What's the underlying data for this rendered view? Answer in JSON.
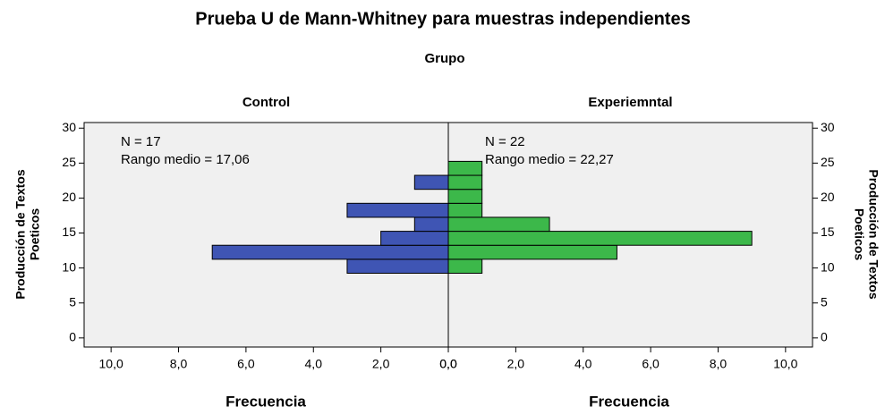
{
  "chart_data": {
    "type": "histogram",
    "title": "Prueba U de Mann-Whitney para muestras independientes",
    "subtitle": "Grupo",
    "ylabel": [
      "Producción de Textos",
      "Poeticos"
    ],
    "xlabel": "Frecuencia",
    "bins": [
      9.25,
      11.25,
      13.25,
      15.25,
      17.25,
      19.25,
      21.25,
      23.25,
      25.25
    ],
    "ylim": [
      -1.3,
      30.8
    ],
    "yticks": [
      0,
      5,
      10,
      15,
      20,
      25,
      30
    ],
    "xlim": [
      0,
      10.8
    ],
    "xticks": [
      {
        "value": 0,
        "label": "0,0"
      },
      {
        "value": 2,
        "label": "2,0"
      },
      {
        "value": 4,
        "label": "4,0"
      },
      {
        "value": 6,
        "label": "6,0"
      },
      {
        "value": 8,
        "label": "8,0"
      },
      {
        "value": 10,
        "label": "10,0"
      }
    ],
    "series": [
      {
        "name": "Control",
        "color": "#3f55b4",
        "values": [
          3,
          7,
          2,
          1,
          3,
          0,
          1,
          0
        ],
        "annotations": [
          "N = 17",
          "Rango medio = 17,06"
        ]
      },
      {
        "name": "Experiemntal",
        "color": "#3cb84a",
        "values": [
          1,
          5,
          9,
          3,
          1,
          1,
          1,
          1
        ],
        "annotations": [
          "N = 22",
          "Rango medio = 22,27"
        ]
      }
    ]
  }
}
